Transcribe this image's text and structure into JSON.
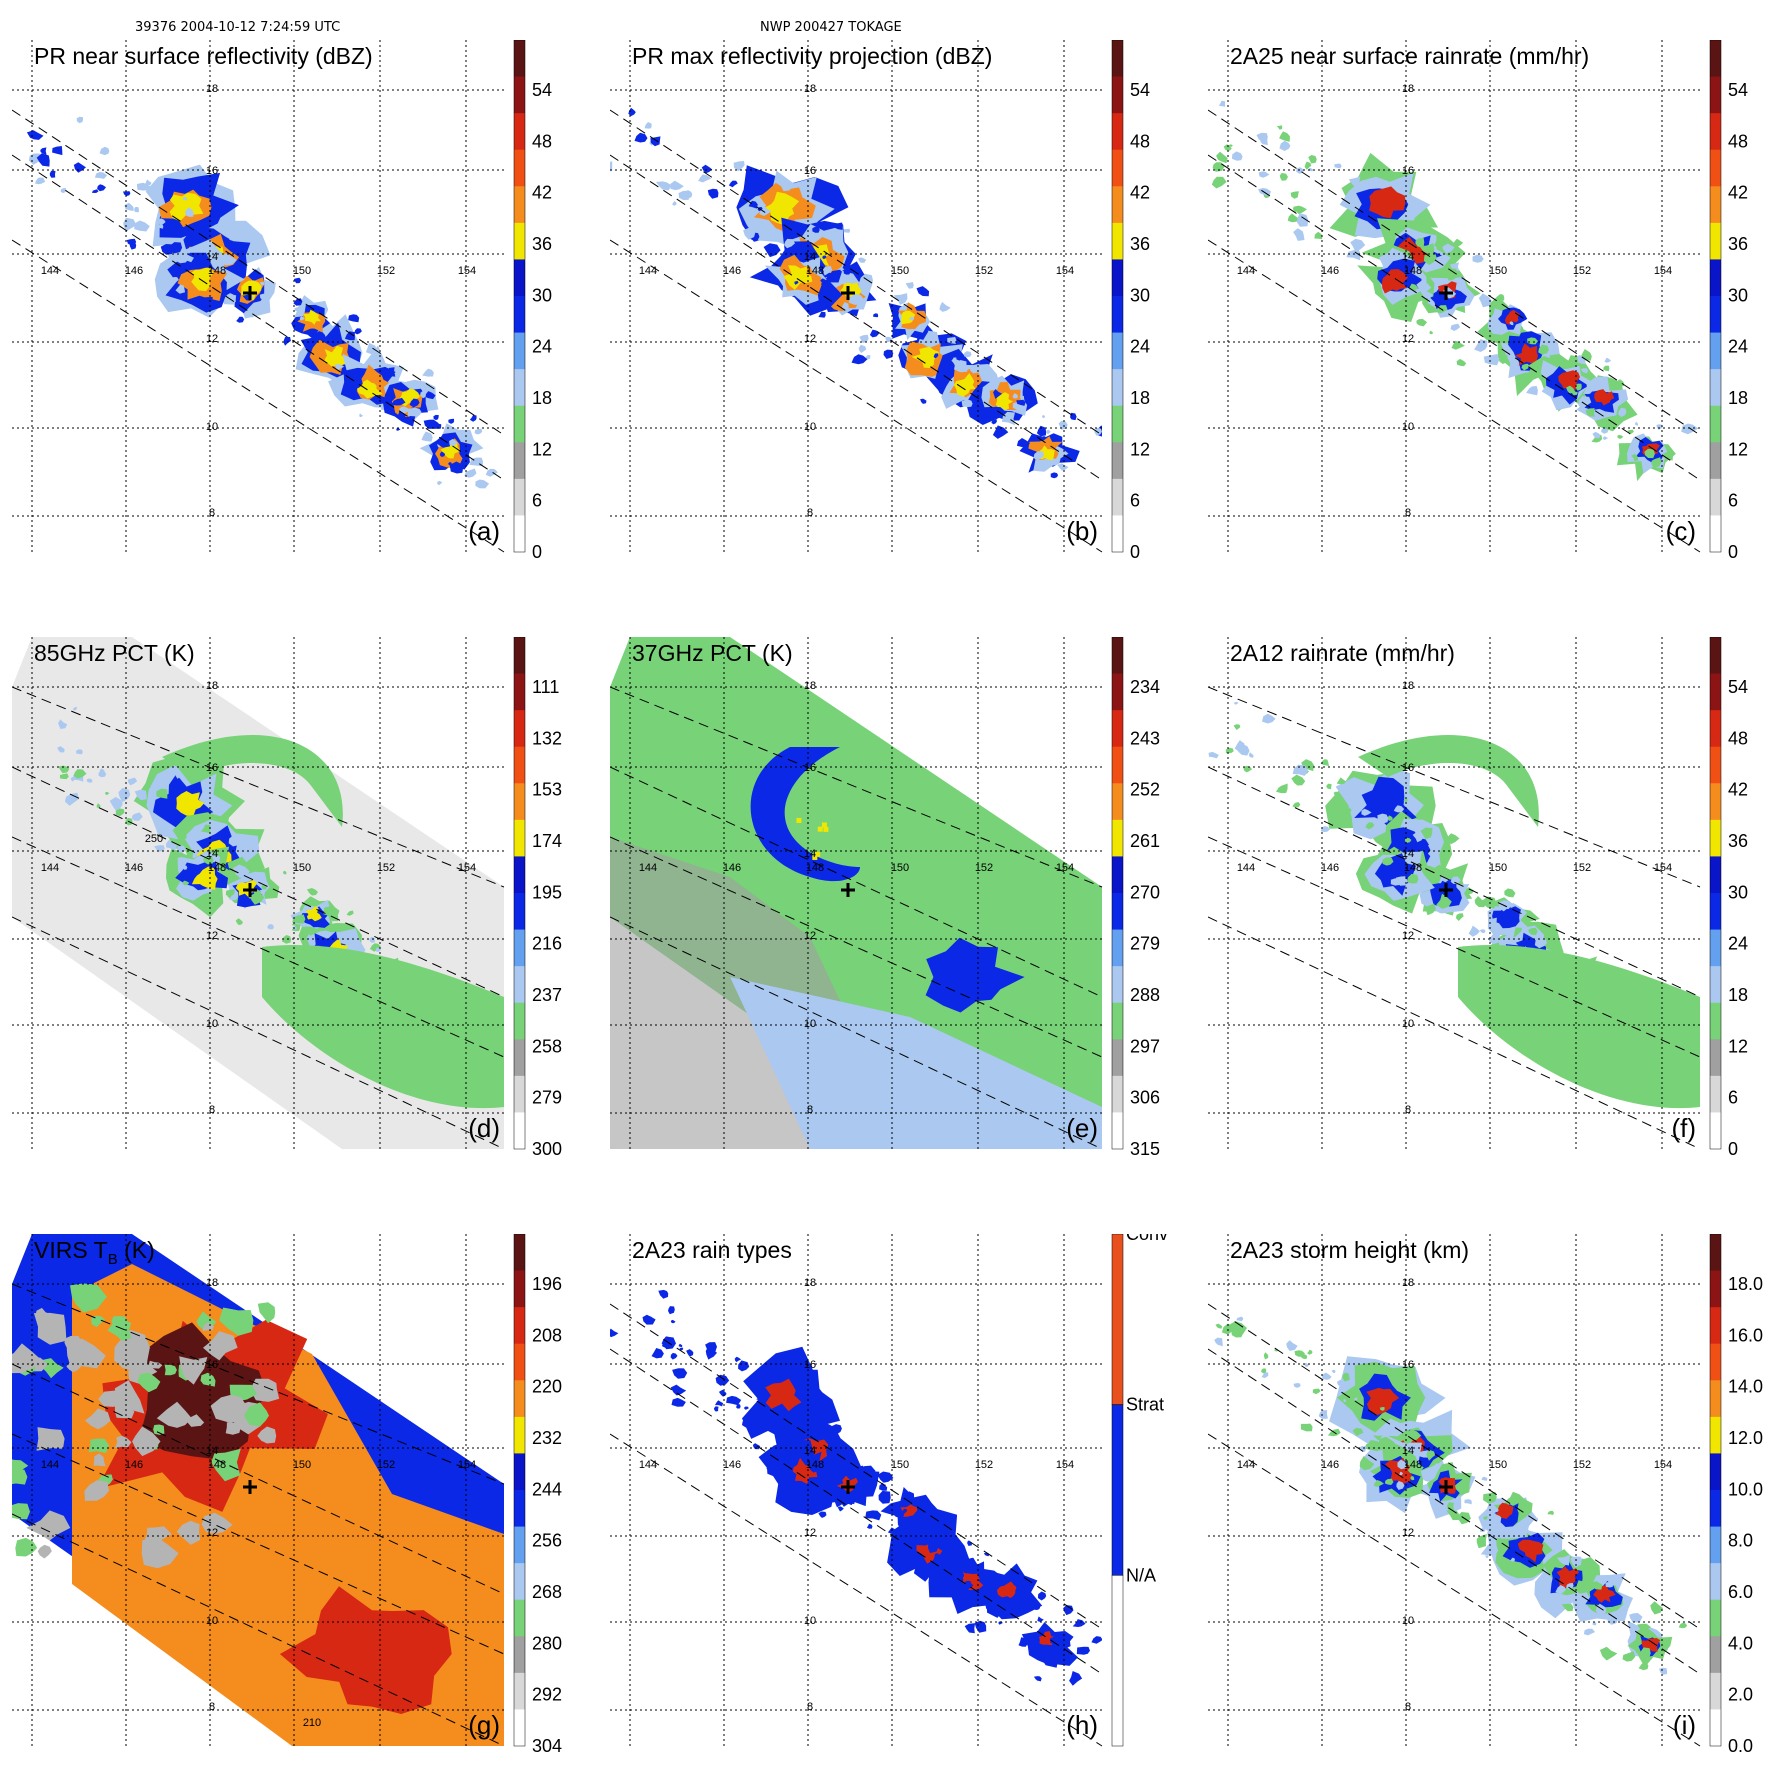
{
  "header": {
    "orbit_time": "39376 2004-10-12 7:24:59 UTC",
    "storm": "NWP 200427 TOKAGE"
  },
  "lon_ticks": [
    "144",
    "146",
    "148",
    "150",
    "152",
    "154"
  ],
  "lat_ticks": [
    "18",
    "16",
    "14",
    "12",
    "10",
    "8"
  ],
  "colors": {
    "gray": "#b4b4b4",
    "green": "#78d278",
    "lightblue": "#aac8f0",
    "blue": "#0a28e6",
    "yellow": "#f0e600",
    "orange": "#f58c1e",
    "red": "#d72814",
    "darkred": "#5a1414"
  },
  "chart_data": [
    {
      "id": "a",
      "type": "heatmap",
      "title": "PR near surface reflectivity (dBZ)",
      "label": "(a)",
      "colorbar": {
        "ticks": [
          "54",
          "48",
          "42",
          "36",
          "30",
          "24",
          "18",
          "12",
          "6",
          "0"
        ]
      }
    },
    {
      "id": "b",
      "type": "heatmap",
      "title": "PR max reflectivity projection (dBZ)",
      "label": "(b)",
      "colorbar": {
        "ticks": [
          "54",
          "48",
          "42",
          "36",
          "30",
          "24",
          "18",
          "12",
          "6",
          "0"
        ]
      }
    },
    {
      "id": "c",
      "type": "heatmap",
      "title": "2A25 near surface rainrate (mm/hr)",
      "label": "(c)",
      "colorbar": {
        "ticks": [
          "54",
          "48",
          "42",
          "36",
          "30",
          "24",
          "18",
          "12",
          "6",
          "0"
        ]
      }
    },
    {
      "id": "d",
      "type": "heatmap",
      "title": "85GHz PCT (K)",
      "label": "(d)",
      "contour_label": "250",
      "colorbar": {
        "ticks": [
          "111",
          "132",
          "153",
          "174",
          "195",
          "216",
          "237",
          "258",
          "279",
          "300"
        ]
      }
    },
    {
      "id": "e",
      "type": "heatmap",
      "title": "37GHz PCT (K)",
      "label": "(e)",
      "colorbar": {
        "ticks": [
          "234",
          "243",
          "252",
          "261",
          "270",
          "279",
          "288",
          "297",
          "306",
          "315"
        ]
      }
    },
    {
      "id": "f",
      "type": "heatmap",
      "title": "2A12 rainrate (mm/hr)",
      "label": "(f)",
      "colorbar": {
        "ticks": [
          "54",
          "48",
          "42",
          "36",
          "30",
          "24",
          "18",
          "12",
          "6",
          "0"
        ]
      }
    },
    {
      "id": "g",
      "type": "heatmap",
      "title": "VIRS T",
      "title_sub": "B",
      "title_tail": " (K)",
      "label": "(g)",
      "contour_label": "210",
      "colorbar": {
        "ticks": [
          "196",
          "208",
          "220",
          "232",
          "244",
          "256",
          "268",
          "280",
          "292",
          "304"
        ]
      }
    },
    {
      "id": "h",
      "type": "heatmap",
      "title": "2A23 rain types",
      "label": "(h)",
      "colorbar": {
        "categories": [
          "Conv",
          "Strat",
          "N/A"
        ]
      }
    },
    {
      "id": "i",
      "type": "heatmap",
      "title": "2A23 storm height (km)",
      "label": "(i)",
      "colorbar": {
        "ticks": [
          "18.0",
          "16.0",
          "14.0",
          "12.0",
          "10.0",
          "8.0",
          "6.0",
          "4.0",
          "2.0",
          "0.0"
        ]
      }
    }
  ]
}
